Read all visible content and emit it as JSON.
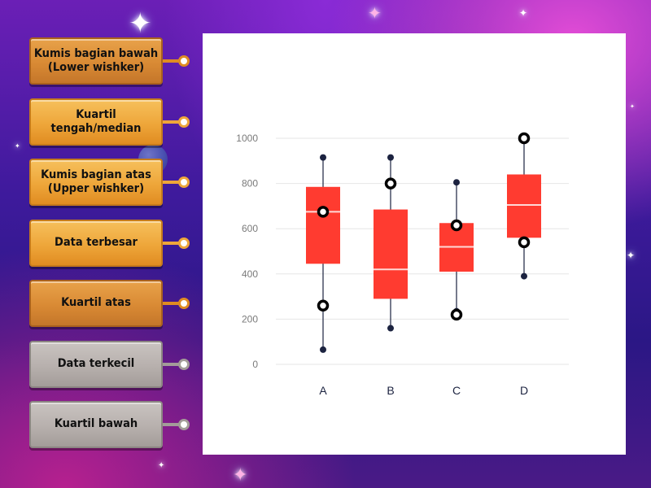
{
  "cards": [
    {
      "label": "Kumis bagian bawah\n(Lower wishker)",
      "style": "dark-orange",
      "knob_color": "#e08c22"
    },
    {
      "label": "Kuartil\ntengah/median",
      "style": "orange",
      "knob_color": "#eea63a"
    },
    {
      "label": "Kumis bagian atas\n(Upper wishker)",
      "style": "orange",
      "knob_color": "#eea63a"
    },
    {
      "label": "Data terbesar",
      "style": "orange",
      "knob_color": "#eea63a"
    },
    {
      "label": "Kuartil atas",
      "style": "dark-orange",
      "knob_color": "#e08c22"
    },
    {
      "label": "Data terkecil",
      "style": "gray",
      "knob_color": "#a39c99"
    },
    {
      "label": "Kuartil bawah",
      "style": "gray",
      "knob_color": "#a39c99"
    }
  ],
  "chart_data": {
    "type": "box",
    "categories": [
      "A",
      "B",
      "C",
      "D"
    ],
    "ylim": [
      0,
      1000
    ],
    "yticks": [
      0,
      200,
      400,
      600,
      800,
      1000
    ],
    "grid": true,
    "box_color": "#ff3b30",
    "median_color": "#ffd9d6",
    "whisker_color": "#1c2340",
    "boxes": [
      {
        "name": "A",
        "min": 65,
        "q1": 445,
        "median": 675,
        "q3": 785,
        "max": 915
      },
      {
        "name": "B",
        "min": 160,
        "q1": 290,
        "median": 420,
        "q3": 685,
        "max": 915
      },
      {
        "name": "C",
        "min": 235,
        "q1": 410,
        "median": 520,
        "q3": 625,
        "max": 805
      },
      {
        "name": "D",
        "min": 390,
        "q1": 560,
        "median": 705,
        "q3": 840,
        "max": 1000
      }
    ],
    "drop_targets": [
      {
        "category": "A",
        "value": 675
      },
      {
        "category": "A",
        "value": 260
      },
      {
        "category": "B",
        "value": 800
      },
      {
        "category": "C",
        "value": 615
      },
      {
        "category": "C",
        "value": 220
      },
      {
        "category": "D",
        "value": 1000
      },
      {
        "category": "D",
        "value": 540
      }
    ]
  }
}
